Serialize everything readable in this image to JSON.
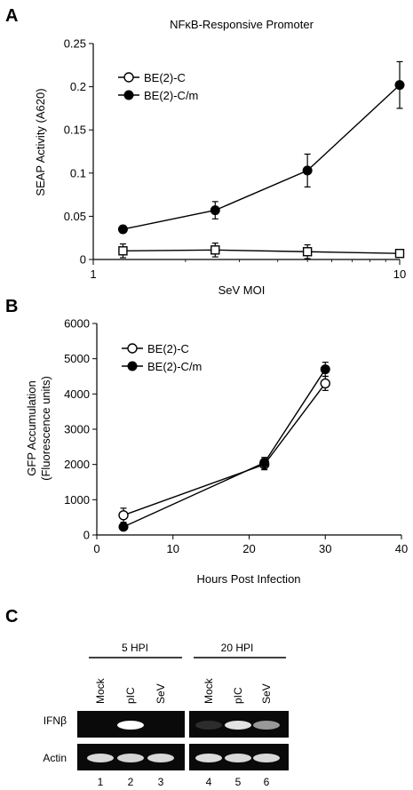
{
  "chart_data": [
    {
      "panel": "A",
      "type": "line",
      "title": "NFκB-Responsive Promoter",
      "xlabel": "SeV MOI",
      "ylabel": "SEAP Activity (A620)",
      "xscale": "log",
      "xlim": [
        1,
        10
      ],
      "ylim": [
        0,
        0.25
      ],
      "xticks": [
        "1",
        "10"
      ],
      "yticks": [
        "0",
        "0.05",
        "0.1",
        "0.15",
        "0.2",
        "0.25"
      ],
      "legend_position": "top-left",
      "x": [
        1.25,
        2.5,
        5,
        10
      ],
      "series": [
        {
          "name": "BE(2)-C",
          "marker": "open-square",
          "values": [
            0.01,
            0.011,
            0.009,
            0.007
          ],
          "errors": [
            0.008,
            0.008,
            0.008,
            0.004
          ]
        },
        {
          "name": "BE(2)-C/m",
          "marker": "filled-circle",
          "values": [
            0.035,
            0.057,
            0.103,
            0.202
          ],
          "errors": [
            0.0,
            0.01,
            0.019,
            0.027
          ]
        }
      ]
    },
    {
      "panel": "B",
      "type": "line",
      "title": "",
      "xlabel": "Hours Post Infection",
      "ylabel": "GFP Accumulation (Fluorescence units)",
      "ylabel_lines": [
        "GFP Accumulation",
        "(Fluorescence units)"
      ],
      "xlim": [
        0,
        40
      ],
      "ylim": [
        0,
        6000
      ],
      "xticks": [
        "0",
        "10",
        "20",
        "30",
        "40"
      ],
      "yticks": [
        "0",
        "1000",
        "2000",
        "3000",
        "4000",
        "5000",
        "6000"
      ],
      "legend_position": "top-left",
      "x": [
        3.5,
        22,
        30
      ],
      "series": [
        {
          "name": "BE(2)-C",
          "marker": "open-circle",
          "values": [
            560,
            2000,
            4300
          ],
          "errors": [
            200,
            150,
            200
          ]
        },
        {
          "name": "BE(2)-C/m",
          "marker": "filled-circle",
          "values": [
            230,
            2050,
            4700
          ],
          "errors": [
            0,
            150,
            200
          ]
        }
      ]
    }
  ],
  "panelC": {
    "letter": "C",
    "group1": "5 HPI",
    "group2": "20 HPI",
    "lanes": [
      "Mock",
      "pIC",
      "SeV",
      "Mock",
      "pIC",
      "SeV"
    ],
    "lane_numbers": [
      "1",
      "2",
      "3",
      "4",
      "5",
      "6"
    ],
    "rows": [
      {
        "label": "IFNβ",
        "band_intensity": [
          0,
          1.0,
          0,
          0.12,
          0.85,
          0.55
        ]
      },
      {
        "label": "Actin",
        "band_intensity": [
          0.8,
          0.78,
          0.8,
          0.82,
          0.8,
          0.8
        ]
      }
    ]
  },
  "panel_letters": {
    "a": "A",
    "b": "B"
  }
}
